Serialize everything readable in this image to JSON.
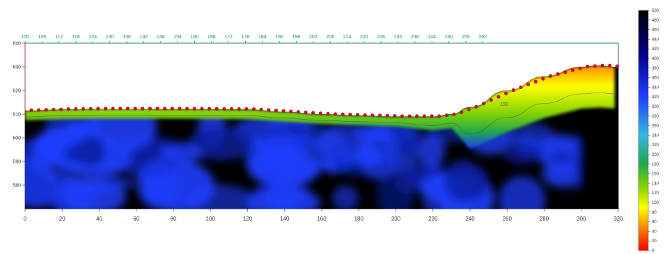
{
  "chart_data": {
    "type": "heatmap",
    "title": "",
    "xlabel": "",
    "ylabel": "",
    "x_bottom": {
      "range": [
        0,
        320
      ],
      "ticks": [
        "0",
        "20",
        "40",
        "60",
        "80",
        "100",
        "120",
        "140",
        "160",
        "180",
        "200",
        "220",
        "240",
        "260",
        "280",
        "300",
        "320"
      ]
    },
    "x_top": {
      "range": [
        100,
        310
      ],
      "ticks": [
        "100",
        "106",
        "112",
        "118",
        "124",
        "130",
        "136",
        "142",
        "148",
        "154",
        "160",
        "166",
        "172",
        "178",
        "184",
        "190",
        "196",
        "202",
        "208",
        "214",
        "220",
        "226",
        "232",
        "238",
        "244",
        "250",
        "256",
        "262"
      ]
    },
    "y": {
      "range": [
        570,
        640
      ],
      "ticks": [
        "640",
        "630",
        "620",
        "610",
        "600",
        "590",
        "580"
      ]
    },
    "colorbar": {
      "range": [
        0,
        500
      ],
      "ticks": [
        "500",
        "480",
        "460",
        "440",
        "420",
        "400",
        "380",
        "360",
        "340",
        "320",
        "300",
        "280",
        "260",
        "240",
        "220",
        "200",
        "180",
        "160",
        "140",
        "120",
        "100",
        "80",
        "60",
        "40",
        "20",
        "0"
      ],
      "colors": [
        "#000000",
        "#00008b",
        "#1f3fff",
        "#34b8e0",
        "#1fa84a",
        "#8dd600",
        "#ffff00",
        "#ff8c00",
        "#ff0000"
      ]
    },
    "surface_profile": {
      "x": [
        0,
        20,
        40,
        60,
        80,
        100,
        120,
        140,
        160,
        180,
        200,
        220,
        230,
        240,
        260,
        280,
        300,
        310,
        318
      ],
      "elevation": [
        611.5,
        612,
        612.2,
        612.2,
        612.2,
        612.1,
        612,
        611,
        610,
        609.5,
        609,
        609,
        610,
        613,
        620,
        626,
        630,
        630.5,
        630
      ]
    },
    "annotations": [
      "100"
    ]
  }
}
